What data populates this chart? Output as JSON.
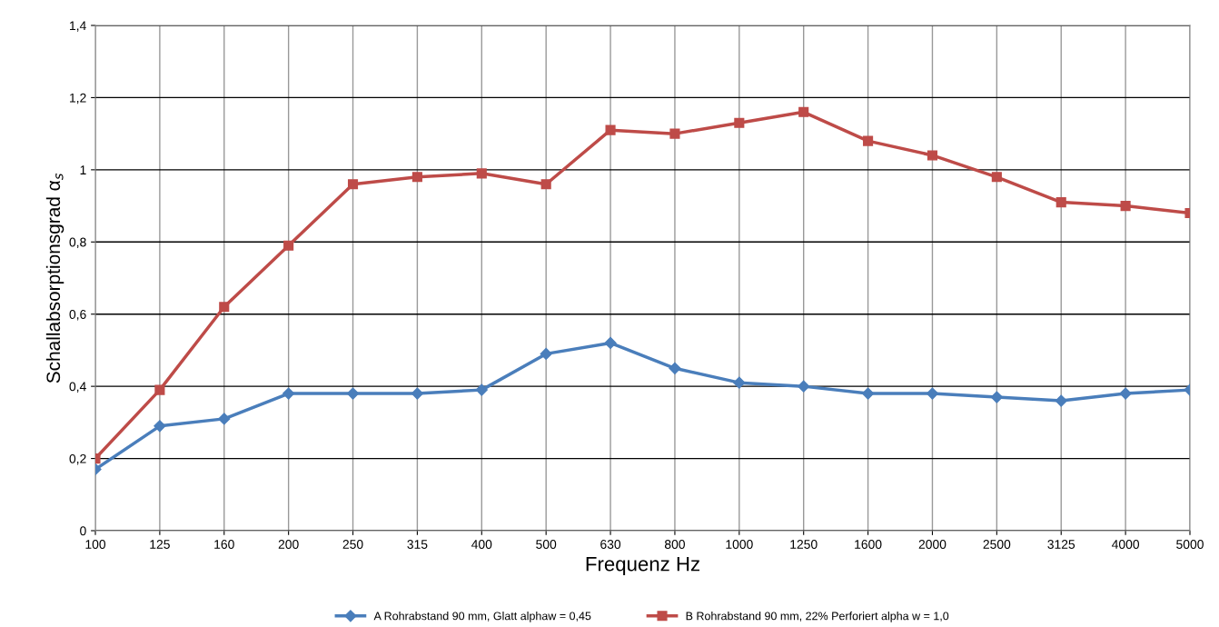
{
  "chart_data": {
    "type": "line",
    "xlabel": "Frequenz Hz",
    "ylabel": "Schallabsorptionsgrad α$_{s}$",
    "categories": [
      "100",
      "125",
      "160",
      "200",
      "250",
      "315",
      "400",
      "500",
      "630",
      "800",
      "1000",
      "1250",
      "1600",
      "2000",
      "2500",
      "3125",
      "4000",
      "5000"
    ],
    "series": [
      {
        "name": "A Rohrabstand 90 mm, Glatt alphaw = 0,45",
        "color": "#4a7ebb",
        "marker": "diamond",
        "values": [
          0.17,
          0.29,
          0.31,
          0.38,
          0.38,
          0.38,
          0.39,
          0.49,
          0.52,
          0.45,
          0.41,
          0.4,
          0.38,
          0.38,
          0.37,
          0.36,
          0.38,
          0.39
        ]
      },
      {
        "name": "B Rohrabstand 90 mm, 22% Perforiert alpha w = 1,0",
        "color": "#be4b48",
        "marker": "square",
        "values": [
          0.2,
          0.39,
          0.62,
          0.79,
          0.96,
          0.98,
          0.99,
          0.96,
          1.11,
          1.1,
          1.13,
          1.16,
          1.08,
          1.04,
          0.98,
          0.91,
          0.9,
          0.88
        ]
      }
    ],
    "ylim": [
      0,
      1.4
    ],
    "yticks": [
      {
        "value": 0,
        "label": "0"
      },
      {
        "value": 0.2,
        "label": "0,2"
      },
      {
        "value": 0.4,
        "label": "0,4"
      },
      {
        "value": 0.6,
        "label": "0,6"
      },
      {
        "value": 0.8,
        "label": "0,8"
      },
      {
        "value": 1,
        "label": "1"
      },
      {
        "value": 1.2,
        "label": "1,2"
      },
      {
        "value": 1.4,
        "label": "1,4"
      }
    ],
    "grid": true,
    "legend": "bottom",
    "line_style": "solid"
  }
}
